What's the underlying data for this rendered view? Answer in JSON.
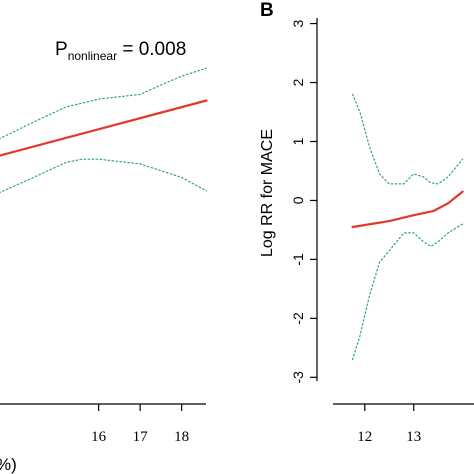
{
  "chart_data": [
    {
      "type": "line",
      "panel_label": "",
      "annotation": {
        "main": "P",
        "sub": "nonlinear",
        "rest": " = 0.008"
      },
      "xlabel_fragment": "%)",
      "xticks": [
        16,
        17,
        18
      ],
      "ylim": [
        -1.5,
        1.45
      ],
      "xlim": [
        13.6,
        18.9
      ],
      "series": [
        {
          "style": "solid",
          "color": "#e03a2a",
          "x": [
            13.6,
            18.6
          ],
          "y": [
            0.0,
            0.82
          ]
        },
        {
          "style": "dotted",
          "color": "#2aa198",
          "x": [
            13.6,
            14.5,
            15.2,
            16.0,
            17.0,
            17.5,
            18.0,
            18.6
          ],
          "y": [
            0.25,
            0.52,
            0.72,
            0.84,
            0.91,
            1.05,
            1.18,
            1.3
          ]
        },
        {
          "style": "dotted",
          "color": "#2aa198",
          "x": [
            13.6,
            14.5,
            15.2,
            15.6,
            16.0,
            17.0,
            17.5,
            18.0,
            18.6
          ],
          "y": [
            -0.55,
            -0.3,
            -0.1,
            -0.05,
            -0.05,
            -0.12,
            -0.22,
            -0.32,
            -0.52
          ]
        }
      ]
    },
    {
      "type": "line",
      "panel_label": "B",
      "ylabel": "Log RR for MACE",
      "yticks": [
        3,
        2,
        1,
        0,
        -1,
        -2,
        -3
      ],
      "xticks": [
        12,
        13
      ],
      "ylim": [
        -3.3,
        3.4
      ],
      "xlim": [
        11.35,
        14.6
      ],
      "series": [
        {
          "style": "solid",
          "color": "#e03a2a",
          "x": [
            11.75,
            12.5,
            13.0,
            13.4,
            13.7,
            14.0
          ],
          "y": [
            -0.45,
            -0.35,
            -0.25,
            -0.18,
            -0.05,
            0.15
          ]
        },
        {
          "style": "dotted",
          "color": "#2aa198",
          "x": [
            11.75,
            11.9,
            12.1,
            12.3,
            12.5,
            12.8,
            13.0,
            13.2,
            13.35,
            13.5,
            13.7,
            14.0
          ],
          "y": [
            1.8,
            1.5,
            0.9,
            0.45,
            0.28,
            0.28,
            0.45,
            0.4,
            0.3,
            0.28,
            0.4,
            0.7
          ]
        },
        {
          "style": "dotted",
          "color": "#2aa198",
          "x": [
            11.75,
            11.9,
            12.1,
            12.3,
            12.5,
            12.8,
            13.0,
            13.2,
            13.35,
            13.5,
            13.7,
            14.0
          ],
          "y": [
            -2.7,
            -2.3,
            -1.6,
            -1.05,
            -0.85,
            -0.55,
            -0.55,
            -0.7,
            -0.78,
            -0.7,
            -0.55,
            -0.4
          ]
        }
      ]
    }
  ]
}
